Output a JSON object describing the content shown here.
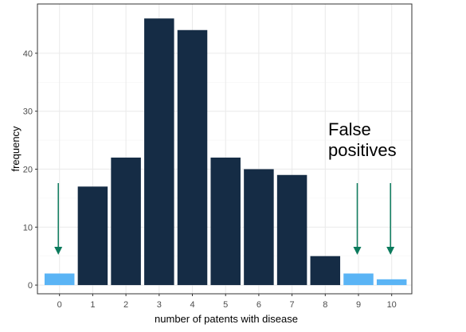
{
  "chart_data": {
    "type": "bar",
    "categories": [
      "0",
      "1",
      "2",
      "3",
      "4",
      "5",
      "6",
      "7",
      "8",
      "9",
      "10"
    ],
    "values": [
      2,
      17,
      22,
      46,
      44,
      22,
      20,
      19,
      5,
      2,
      1
    ],
    "highlighted": [
      true,
      false,
      false,
      false,
      false,
      false,
      false,
      false,
      false,
      true,
      true
    ],
    "xlabel": "number of patents with disease",
    "ylabel": "frequency",
    "ylim": [
      -1.5,
      48.5
    ],
    "y_ticks": [
      0,
      10,
      20,
      30,
      40
    ],
    "grid": true,
    "annotation": {
      "lines": [
        "False",
        "positives"
      ],
      "arrow_categories": [
        "0",
        "9",
        "10"
      ]
    },
    "colors": {
      "bar": "#152c45",
      "highlight": "#5ab4f5",
      "arrow": "#0b7a5c",
      "grid_major": "#ebebeb",
      "grid_minor": "#f5f5f5",
      "panel_border": "#333333"
    }
  }
}
